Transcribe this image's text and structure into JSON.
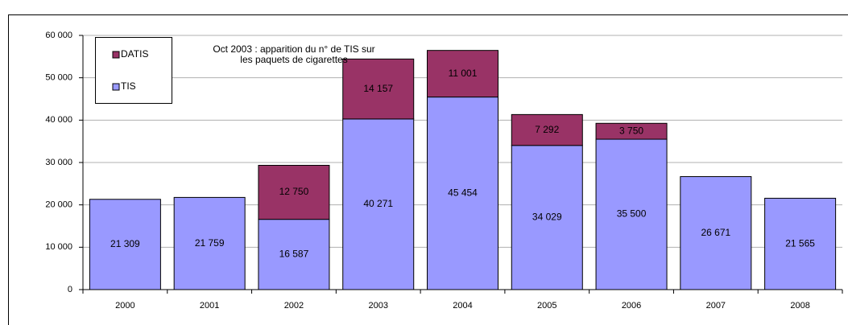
{
  "chart_data": {
    "type": "stacked-bar",
    "annotation": [
      "Oct 2003 : apparition du n° de TIS sur",
      "les paquets de cigarettes"
    ],
    "categories": [
      "2000",
      "2001",
      "2002",
      "2003",
      "2004",
      "2005",
      "2006",
      "2007",
      "2008"
    ],
    "series": [
      {
        "name": "TIS",
        "color": "#9999ff",
        "values": [
          21309,
          21759,
          16587,
          40271,
          45454,
          34029,
          35500,
          26671,
          21565
        ],
        "value_labels": [
          "21 309",
          "21 759",
          "16 587",
          "40 271",
          "45 454",
          "34 029",
          "35 500",
          "26 671",
          "21 565"
        ]
      },
      {
        "name": "DATIS",
        "color": "#993366",
        "values": [
          null,
          null,
          12750,
          14157,
          11001,
          7292,
          3750,
          null,
          null
        ],
        "value_labels": [
          null,
          null,
          "12 750",
          "14 157",
          "11 001",
          "7 292",
          "3 750",
          null,
          null
        ]
      }
    ],
    "ylim": [
      0,
      60000
    ],
    "yticks": [
      0,
      {
        "value": 10000,
        "label": "10 000"
      },
      {
        "value": 20000,
        "label": "20 000"
      },
      {
        "value": 30000,
        "label": "30 000"
      },
      {
        "value": 40000,
        "label": "40 000"
      },
      {
        "value": 50000,
        "label": "50 000"
      },
      {
        "value": 60000,
        "label": "60 000"
      }
    ],
    "grid": true
  }
}
